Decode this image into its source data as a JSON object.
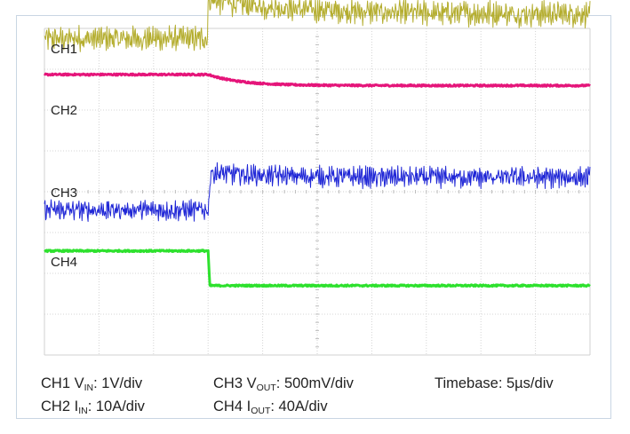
{
  "chart_data": {
    "type": "line",
    "title": "",
    "xlabel": "",
    "ylabel": "",
    "grid": true,
    "x_divisions": 10,
    "y_divisions": 8,
    "event_time_div": 3.0,
    "series": [
      {
        "name": "CH1",
        "color": "#b4ad2e",
        "before_div": 3.75,
        "after_div": 4.7,
        "after_settled_div": 4.35,
        "ripple_div": 0.22
      },
      {
        "name": "CH2",
        "color": "#e5157a",
        "before_div": 2.87,
        "after_div": 2.6,
        "ripple_div": 0.02
      },
      {
        "name": "CH3",
        "color": "#1f26d6",
        "before_div": -0.45,
        "after_div": 0.35,
        "ripple_div": 0.18
      },
      {
        "name": "CH4",
        "color": "#2ee12e",
        "before_div": -1.45,
        "after_div": -2.3,
        "ripple_div": 0.02
      }
    ]
  },
  "labels": {
    "ch1": "CH1",
    "ch2": "CH2",
    "ch3": "CH3",
    "ch4": "CH4"
  },
  "caption": {
    "ch1_prefix": "CH1 V",
    "ch1_sub": "IN",
    "ch1_scale": ": 1V/div",
    "ch2_prefix": "CH2 I",
    "ch2_sub": "IN",
    "ch2_scale": ": 10A/div",
    "ch3_prefix": "CH3 V",
    "ch3_sub": "OUT",
    "ch3_scale": ": 500mV/div",
    "ch4_prefix": "CH4 I",
    "ch4_sub": "OUT",
    "ch4_scale": ": 40A/div",
    "timebase": "Timebase: 5µs/div"
  }
}
